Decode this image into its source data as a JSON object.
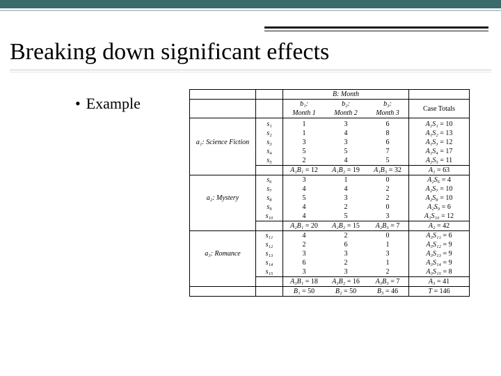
{
  "slide": {
    "title": "Breaking down significant effects",
    "bullet": "Example"
  },
  "table": {
    "factor_b_title": "B: Month",
    "b_headers": [
      {
        "top": "b₁:",
        "bottom": "Month 1"
      },
      {
        "top": "b₂:",
        "bottom": "Month 2"
      },
      {
        "top": "b₃:",
        "bottom": "Month 3"
      }
    ],
    "case_totals_header": "Case Totals",
    "a_groups": [
      {
        "label": "a₁: Science Fiction",
        "subjects": [
          "s₁",
          "s₂",
          "s₃",
          "s₄",
          "s₅"
        ],
        "values": [
          [
            1,
            3,
            6
          ],
          [
            1,
            4,
            8
          ],
          [
            3,
            3,
            6
          ],
          [
            5,
            5,
            7
          ],
          [
            2,
            4,
            5
          ]
        ],
        "row_totals_labels": [
          "A₁S₁",
          "A₁S₂",
          "A₁S₃",
          "A₁S₄",
          "A₁S₅"
        ],
        "row_totals": [
          10,
          13,
          12,
          17,
          11
        ],
        "cell_sums_labels": [
          "A₁B₁",
          "A₁B₂",
          "A₁B₃"
        ],
        "cell_sums": [
          12,
          19,
          32
        ],
        "group_total_label": "A₁",
        "group_total": 63
      },
      {
        "label": "a₂: Mystery",
        "subjects": [
          "s₆",
          "s₇",
          "s₈",
          "s₉",
          "s₁₀"
        ],
        "values": [
          [
            3,
            1,
            0
          ],
          [
            4,
            4,
            2
          ],
          [
            5,
            3,
            2
          ],
          [
            4,
            2,
            0
          ],
          [
            4,
            5,
            3
          ]
        ],
        "row_totals_labels": [
          "A₂S₆",
          "A₂S₇",
          "A₂S₈",
          "A₂S₉",
          "A₂S₁₀"
        ],
        "row_totals": [
          4,
          10,
          10,
          6,
          12
        ],
        "cell_sums_labels": [
          "A₂B₁",
          "A₂B₂",
          "A₂B₃"
        ],
        "cell_sums": [
          20,
          15,
          7
        ],
        "group_total_label": "A₂",
        "group_total": 42
      },
      {
        "label": "a₃: Romance",
        "subjects": [
          "s₁₁",
          "s₁₂",
          "s₁₃",
          "s₁₄",
          "s₁₅"
        ],
        "values": [
          [
            4,
            2,
            0
          ],
          [
            2,
            6,
            1
          ],
          [
            3,
            3,
            3
          ],
          [
            6,
            2,
            1
          ],
          [
            3,
            3,
            2
          ]
        ],
        "row_totals_labels": [
          "A₃S₁₁",
          "A₃S₁₂",
          "A₃S₁₃",
          "A₃S₁₄",
          "A₃S₁₅"
        ],
        "row_totals": [
          6,
          9,
          9,
          9,
          8
        ],
        "cell_sums_labels": [
          "A₃B₁",
          "A₃B₂",
          "A₃B₃"
        ],
        "cell_sums": [
          18,
          16,
          7
        ],
        "group_total_label": "A₃",
        "group_total": 41
      }
    ],
    "col_sums_labels": [
      "B₁",
      "B₂",
      "B₃"
    ],
    "col_sums": [
      50,
      50,
      46
    ],
    "grand_total_label": "T",
    "grand_total": 146
  },
  "colors": {
    "accent": "#3a6a6c",
    "accent_light": "#b7c8c9",
    "border": "#000000",
    "underline": "#c9c9c9",
    "background": "#ffffff"
  }
}
